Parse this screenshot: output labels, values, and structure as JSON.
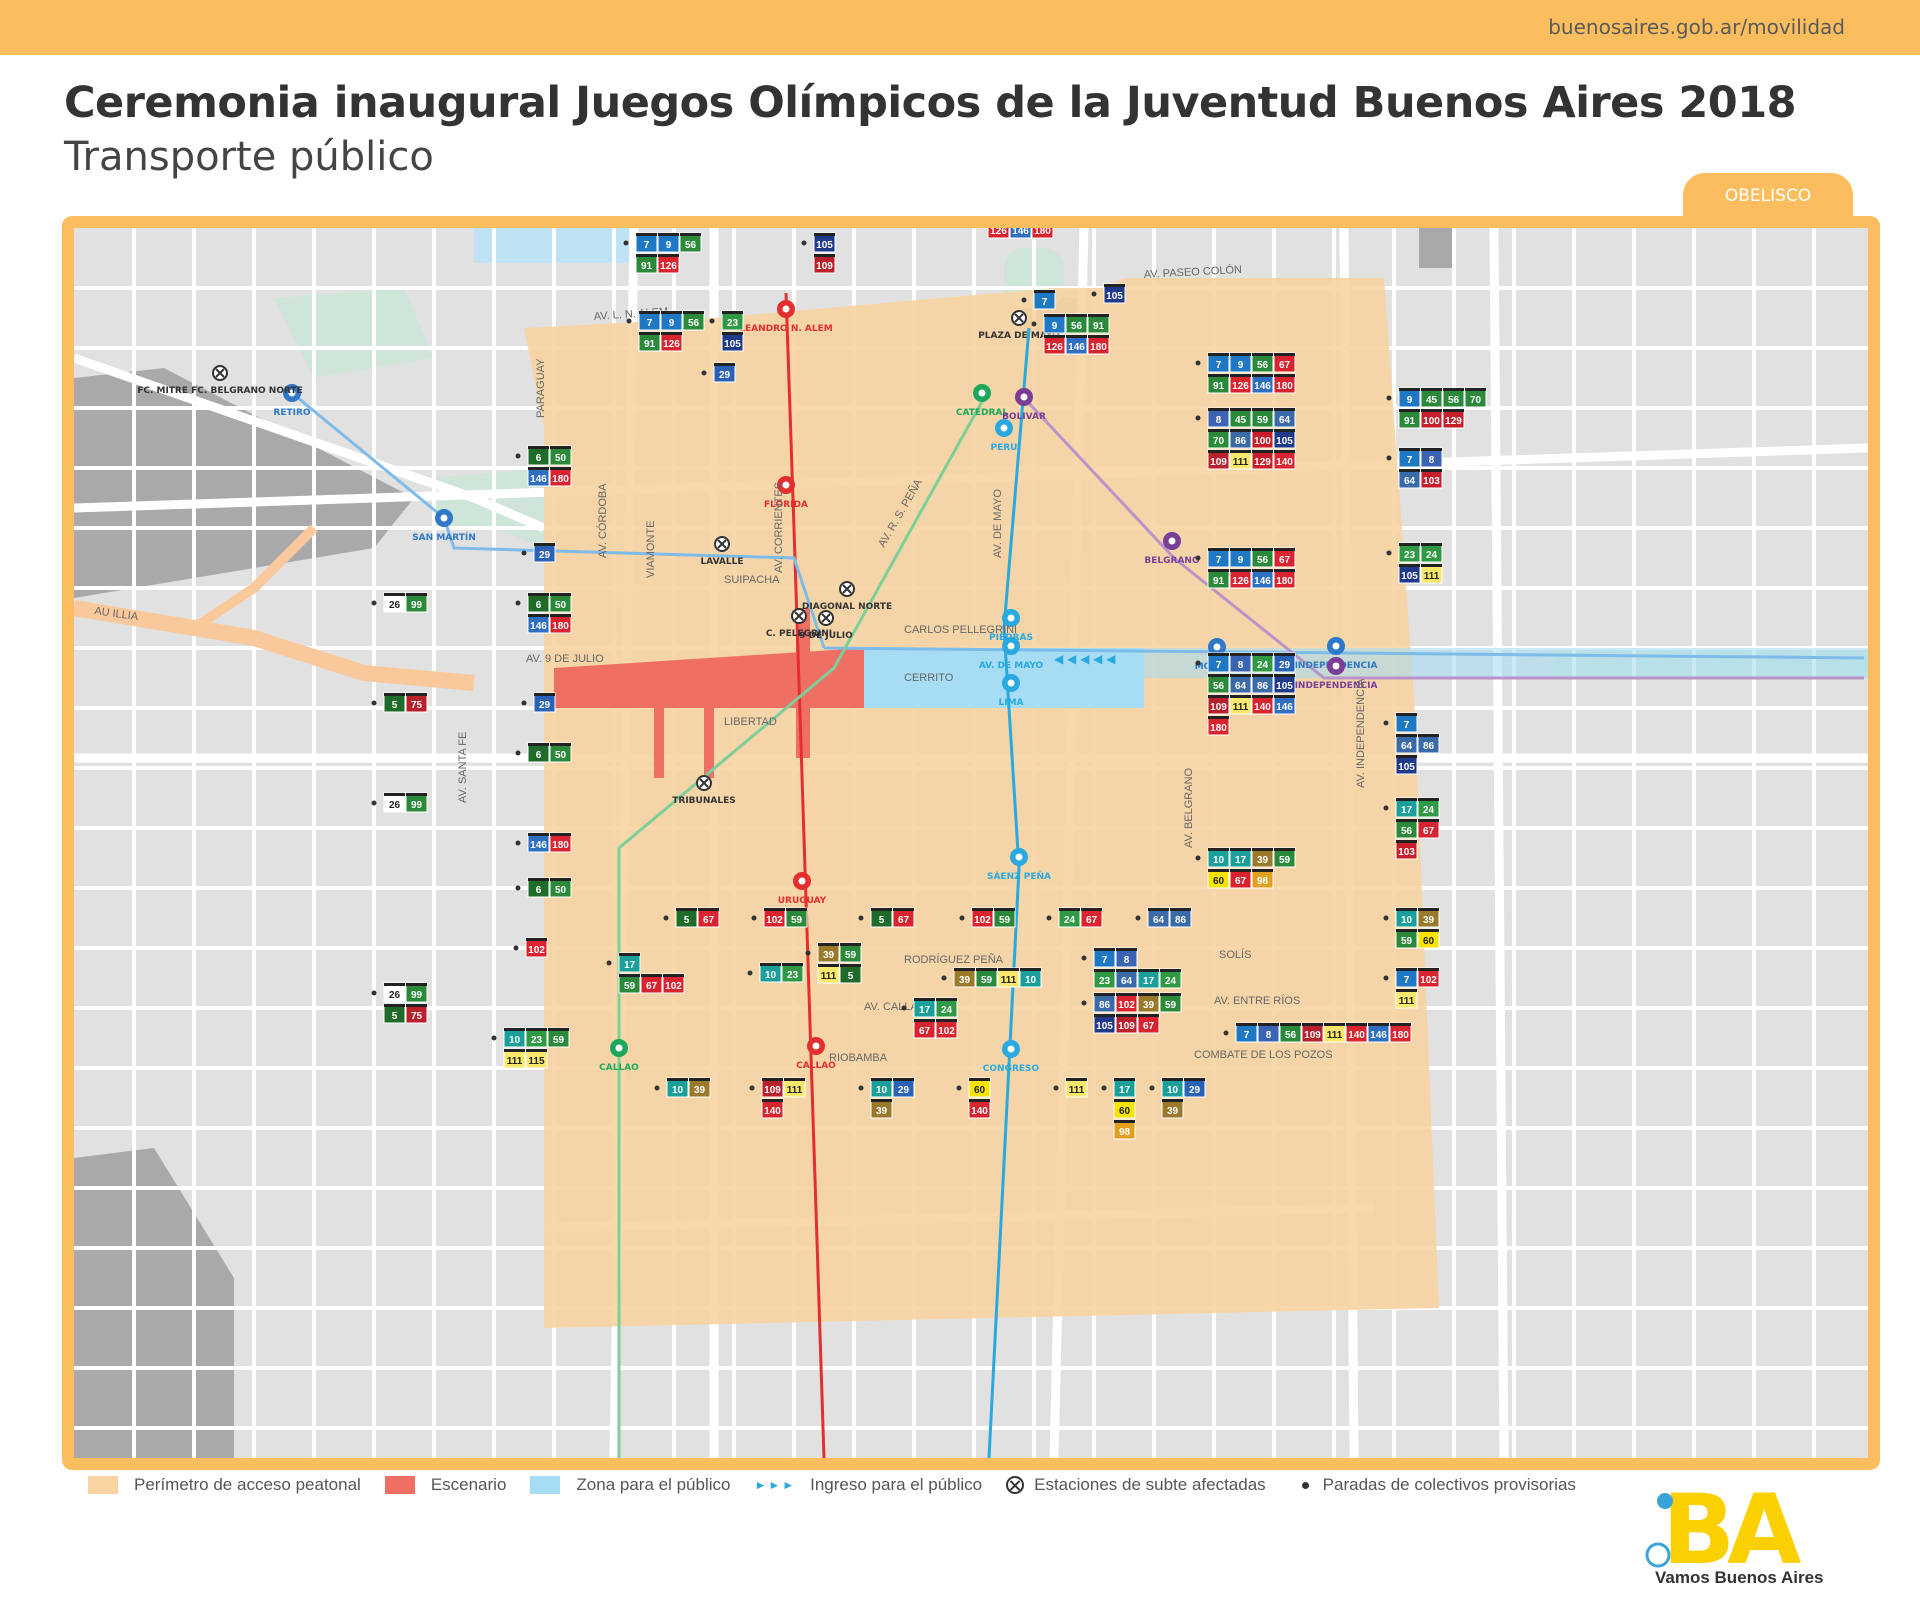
{
  "header": {
    "url": "buenosaires.gob.ar/movilidad",
    "title": "Ceremonia inaugural Juegos Olímpicos de la Juventud Buenos Aires 2018",
    "subtitle": "Transporte público",
    "zone_tab": "OBELISCO"
  },
  "colors": {
    "orange": "#fbbd5d",
    "perimeter": "#f7d4a2",
    "stage": "#ef6f65",
    "public_zone": "#a6dcf4",
    "line_A": "#29a9e0",
    "line_B": "#e42f2f",
    "line_C": "#2e78c7",
    "line_D": "#1ba85a",
    "line_E": "#7a3e97",
    "line_H": "#f2c200"
  },
  "streets": [
    "AV. L. N. ALEM",
    "AV. PASEO COLÓN",
    "PARAGUAY",
    "AV. CÓRDOBA",
    "VIAMONTE",
    "AV. CORRIENTES",
    "AV. R. S. PEÑA",
    "AV. DE MAYO",
    "SUIPACHA",
    "CARLOS PELLEGRINI",
    "AV. 9 DE JULIO",
    "CERRITO",
    "LIBERTAD",
    "AU ILLIA",
    "AV. SANTA FE",
    "AV. BELGRANO",
    "AV. INDEPENDENCIA",
    "RODRÍGUEZ PEÑA",
    "SOLÍS",
    "AV. CALLAO",
    "AV. ENTRE RÍOS",
    "RIOBAMBA",
    "COMBATE DE LOS POZOS"
  ],
  "stations": [
    {
      "name": "LEANDRO N. ALEM",
      "line": "B"
    },
    {
      "name": "FLORIDA",
      "line": "B"
    },
    {
      "name": "URUGUAY",
      "line": "B"
    },
    {
      "name": "CALLAO",
      "line": "B"
    },
    {
      "name": "RETIRO",
      "line": "C"
    },
    {
      "name": "SAN MARTÍN",
      "line": "C"
    },
    {
      "name": "MORENO",
      "line": "C"
    },
    {
      "name": "INDEPENDENCIA",
      "line": "C"
    },
    {
      "name": "CATEDRAL",
      "line": "D"
    },
    {
      "name": "CALLAO",
      "line": "D"
    },
    {
      "name": "BOLIVAR",
      "line": "E"
    },
    {
      "name": "BELGRANO",
      "line": "E"
    },
    {
      "name": "INDEPENDENCIA",
      "line": "E"
    },
    {
      "name": "PERU",
      "line": "A"
    },
    {
      "name": "PIEDRAS",
      "line": "A"
    },
    {
      "name": "AV. DE MAYO",
      "line": "A"
    },
    {
      "name": "LIMA",
      "line": "A"
    },
    {
      "name": "SÁENZ PEÑA",
      "line": "A"
    },
    {
      "name": "CONGRESO",
      "line": "A"
    }
  ],
  "affected_stations": [
    "PLAZA DE MAYO",
    "LAVALLE",
    "DIAGONAL NORTE",
    "9 DE JULIO",
    "C. PELEGRINI",
    "TRIBUNALES",
    "FC. MITRE FC. BELGRANO NORTE"
  ],
  "bus_stops": [
    [
      [
        "7",
        "9",
        "56"
      ],
      [
        "91",
        "126"
      ]
    ],
    [
      [
        "105"
      ],
      [
        "109"
      ]
    ],
    [
      [
        "7",
        "9",
        "56",
        "91"
      ],
      [
        "126",
        "146",
        "180"
      ]
    ],
    [
      [
        "7",
        "9",
        "56"
      ],
      [
        "91",
        "126"
      ]
    ],
    [
      [
        "23"
      ],
      [
        "105"
      ]
    ],
    [
      [
        "7"
      ]
    ],
    [
      [
        "105"
      ]
    ],
    [
      [
        "9",
        "56",
        "91"
      ],
      [
        "126",
        "146",
        "180"
      ]
    ],
    [
      [
        "29"
      ]
    ],
    [
      [
        "7",
        "9",
        "56",
        "67"
      ],
      [
        "91",
        "126",
        "146",
        "180"
      ]
    ],
    [
      [
        "9",
        "45",
        "56",
        "70"
      ],
      [
        "91",
        "100",
        "129"
      ]
    ],
    [
      [
        "8",
        "45",
        "59",
        "64"
      ],
      [
        "70",
        "86",
        "100",
        "105"
      ],
      [
        "109",
        "111",
        "129",
        "140"
      ]
    ],
    [
      [
        "6",
        "50"
      ],
      [
        "146",
        "180"
      ]
    ],
    [
      [
        "7",
        "8"
      ],
      [
        "64",
        "103"
      ]
    ],
    [
      [
        "29"
      ]
    ],
    [
      [
        "23",
        "24"
      ],
      [
        "105",
        "111"
      ]
    ],
    [
      [
        "7",
        "9",
        "56",
        "67"
      ],
      [
        "91",
        "126",
        "146",
        "180"
      ]
    ],
    [
      [
        "26",
        "99"
      ]
    ],
    [
      [
        "6",
        "50"
      ],
      [
        "146",
        "180"
      ]
    ],
    [
      [
        "7",
        "8",
        "24",
        "29"
      ],
      [
        "56",
        "64",
        "86",
        "105"
      ],
      [
        "109",
        "111",
        "140",
        "146"
      ],
      [
        "180"
      ]
    ],
    [
      [
        "5",
        "75"
      ]
    ],
    [
      [
        "29"
      ]
    ],
    [
      [
        "7"
      ],
      [
        "64",
        "86"
      ],
      [
        "105"
      ]
    ],
    [
      [
        "6",
        "50"
      ]
    ],
    [
      [
        "26",
        "99"
      ]
    ],
    [
      [
        "17",
        "24"
      ],
      [
        "56",
        "67"
      ],
      [
        "103"
      ]
    ],
    [
      [
        "146",
        "180"
      ]
    ],
    [
      [
        "10",
        "17",
        "39",
        "59"
      ],
      [
        "60",
        "67",
        "98"
      ]
    ],
    [
      [
        "6",
        "50"
      ]
    ],
    [
      [
        "10",
        "39"
      ],
      [
        "59",
        "60"
      ]
    ],
    [
      [
        "5",
        "67"
      ]
    ],
    [
      [
        "102",
        "59"
      ]
    ],
    [
      [
        "5",
        "67"
      ]
    ],
    [
      [
        "102",
        "59"
      ]
    ],
    [
      [
        "24",
        "67"
      ]
    ],
    [
      [
        "64",
        "86"
      ]
    ],
    [
      [
        "102"
      ]
    ],
    [
      [
        "39",
        "59"
      ],
      [
        "111",
        "5"
      ]
    ],
    [
      [
        "7",
        "8"
      ],
      [
        "23",
        "64",
        "17",
        "24"
      ]
    ],
    [
      [
        "7",
        "102"
      ],
      [
        "111"
      ]
    ],
    [
      [
        "17"
      ],
      [
        "59",
        "67",
        "102"
      ]
    ],
    [
      [
        "10",
        "23"
      ]
    ],
    [
      [
        "39",
        "59",
        "111",
        "10"
      ]
    ],
    [
      [
        "26",
        "99"
      ],
      [
        "5",
        "75"
      ]
    ],
    [
      [
        "17",
        "24"
      ],
      [
        "67",
        "102"
      ]
    ],
    [
      [
        "86",
        "102",
        "39",
        "59"
      ],
      [
        "105",
        "109",
        "67"
      ]
    ],
    [
      [
        "7",
        "8",
        "56",
        "109",
        "111",
        "140",
        "146",
        "180"
      ]
    ],
    [
      [
        "10",
        "23",
        "59"
      ],
      [
        "111",
        "115"
      ]
    ],
    [
      [
        "10",
        "39"
      ]
    ],
    [
      [
        "109",
        "111"
      ],
      [
        "140"
      ]
    ],
    [
      [
        "10",
        "29"
      ],
      [
        "39"
      ]
    ],
    [
      [
        "60"
      ],
      [
        "140"
      ]
    ],
    [
      [
        "111"
      ]
    ],
    [
      [
        "17"
      ],
      [
        "60"
      ],
      [
        "98"
      ]
    ],
    [
      [
        "10",
        "29"
      ],
      [
        "39"
      ]
    ]
  ],
  "legend": {
    "perimeter": "Perímetro de acceso peatonal",
    "stage": "Escenario",
    "public_zone": "Zona para el público",
    "entrance": "Ingreso para el público",
    "affected": "Estaciones de subte afectadas",
    "stops": "Paradas de colectivos provisorias"
  },
  "logo": {
    "mark": "BA",
    "tagline": "Vamos Buenos Aires"
  }
}
